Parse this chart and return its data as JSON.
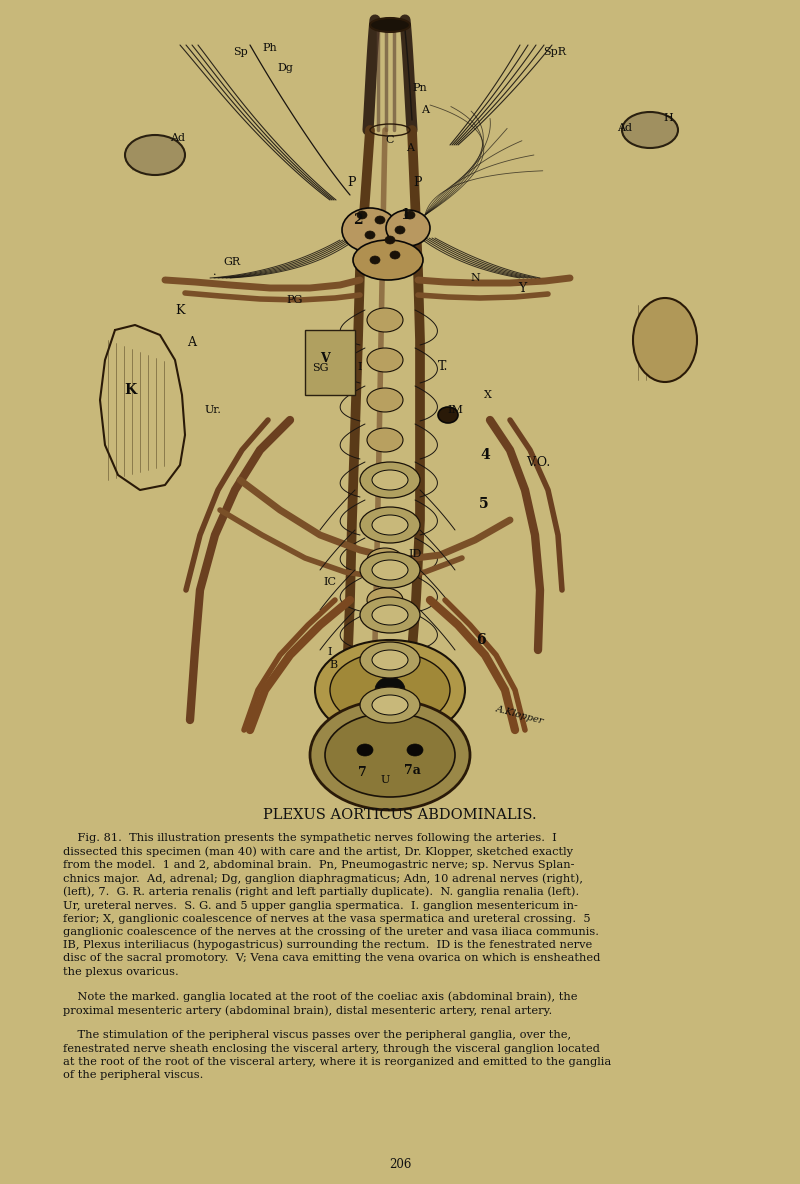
{
  "bg_color": "#c8b87a",
  "page_bg": "#c8b87a",
  "ink_color": "#1a1510",
  "dark_ink": "#0d0c0a",
  "brown_vessel": "#6b4020",
  "title": "PLEXUS AORTICUS ABDOMINALIS.",
  "title_fontsize": 10.5,
  "body_para1": "    Fig. 81.  This illustration presents the sympathetic nerves following the arteries.  I\ndissected this specimen (man 40) with care and the artist, Dr. Klopper, sketched exactly\nfrom the model.  1 and 2, abdominal brain.  Pn, Pneumogastric nerve; sp. Nervus Splan-\nchnics major.  Ad, adrenal; Dg, ganglion diaphragmaticus; Adn, 10 adrenal nerves (right),\n(left), 7.  G. R. arteria renalis (right and left partially duplicate).  N. ganglia renalia (left).\nUr, ureteral nerves.  S. G. and 5 upper ganglia spermatica.  I. ganglion mesentericum in-\nferior; X, ganglionic coalescence of nerves at the vasa spermatica and ureteral crossing.  5\nganglionic coalescence of the nerves at the crossing of the ureter and vasa iliaca communis.\nIB, Plexus interiliacus (hypogastricus) surrounding the rectum.  ID is the fenestrated nerve\ndisc of the sacral promotory.  V; Vena cava emitting the vena ovarica on which is ensheathed\nthe plexus ovaricus.",
  "body_para2": "    Note the marked. ganglia located at the root of the coeliac axis (abdominal brain), the\nproximal mesenteric artery (abdominal brain), distal mesenteric artery, renal artery.",
  "body_para3": "    The stimulation of the peripheral viscus passes over the peripheral ganglia, over the,\nfenestrated nerve sheath enclosing the visceral artery, through the visceral ganglion located\nat the root of the root of the visceral artery, where it is reorganized and emitted to the ganglia\nof the peripheral viscus.",
  "page_number": "206",
  "text_fontsize": 8.2,
  "text_color": "#111111"
}
